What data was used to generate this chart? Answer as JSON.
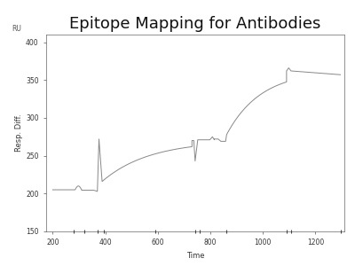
{
  "title": "Epitope Mapping for Antibodies",
  "xlabel": "Time",
  "ylabel": "Resp. Diff.",
  "ru_label": "RU",
  "xlim": [
    175,
    1310
  ],
  "ylim": [
    150,
    410
  ],
  "yticks": [
    150,
    200,
    250,
    300,
    350,
    400
  ],
  "xticks": [
    200,
    400,
    600,
    800,
    1000,
    1200
  ],
  "line_color": "#888888",
  "bg_color": "#ffffff",
  "figsize": [
    4.0,
    3.0
  ],
  "dpi": 100,
  "title_fontsize": 13,
  "label_fontsize": 6,
  "tick_fontsize": 5.5
}
